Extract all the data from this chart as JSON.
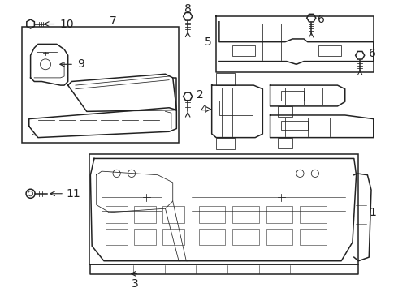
{
  "bg_color": "#ffffff",
  "line_color": "#222222",
  "lw": 1.1,
  "tlw": 0.55,
  "fs": 10
}
